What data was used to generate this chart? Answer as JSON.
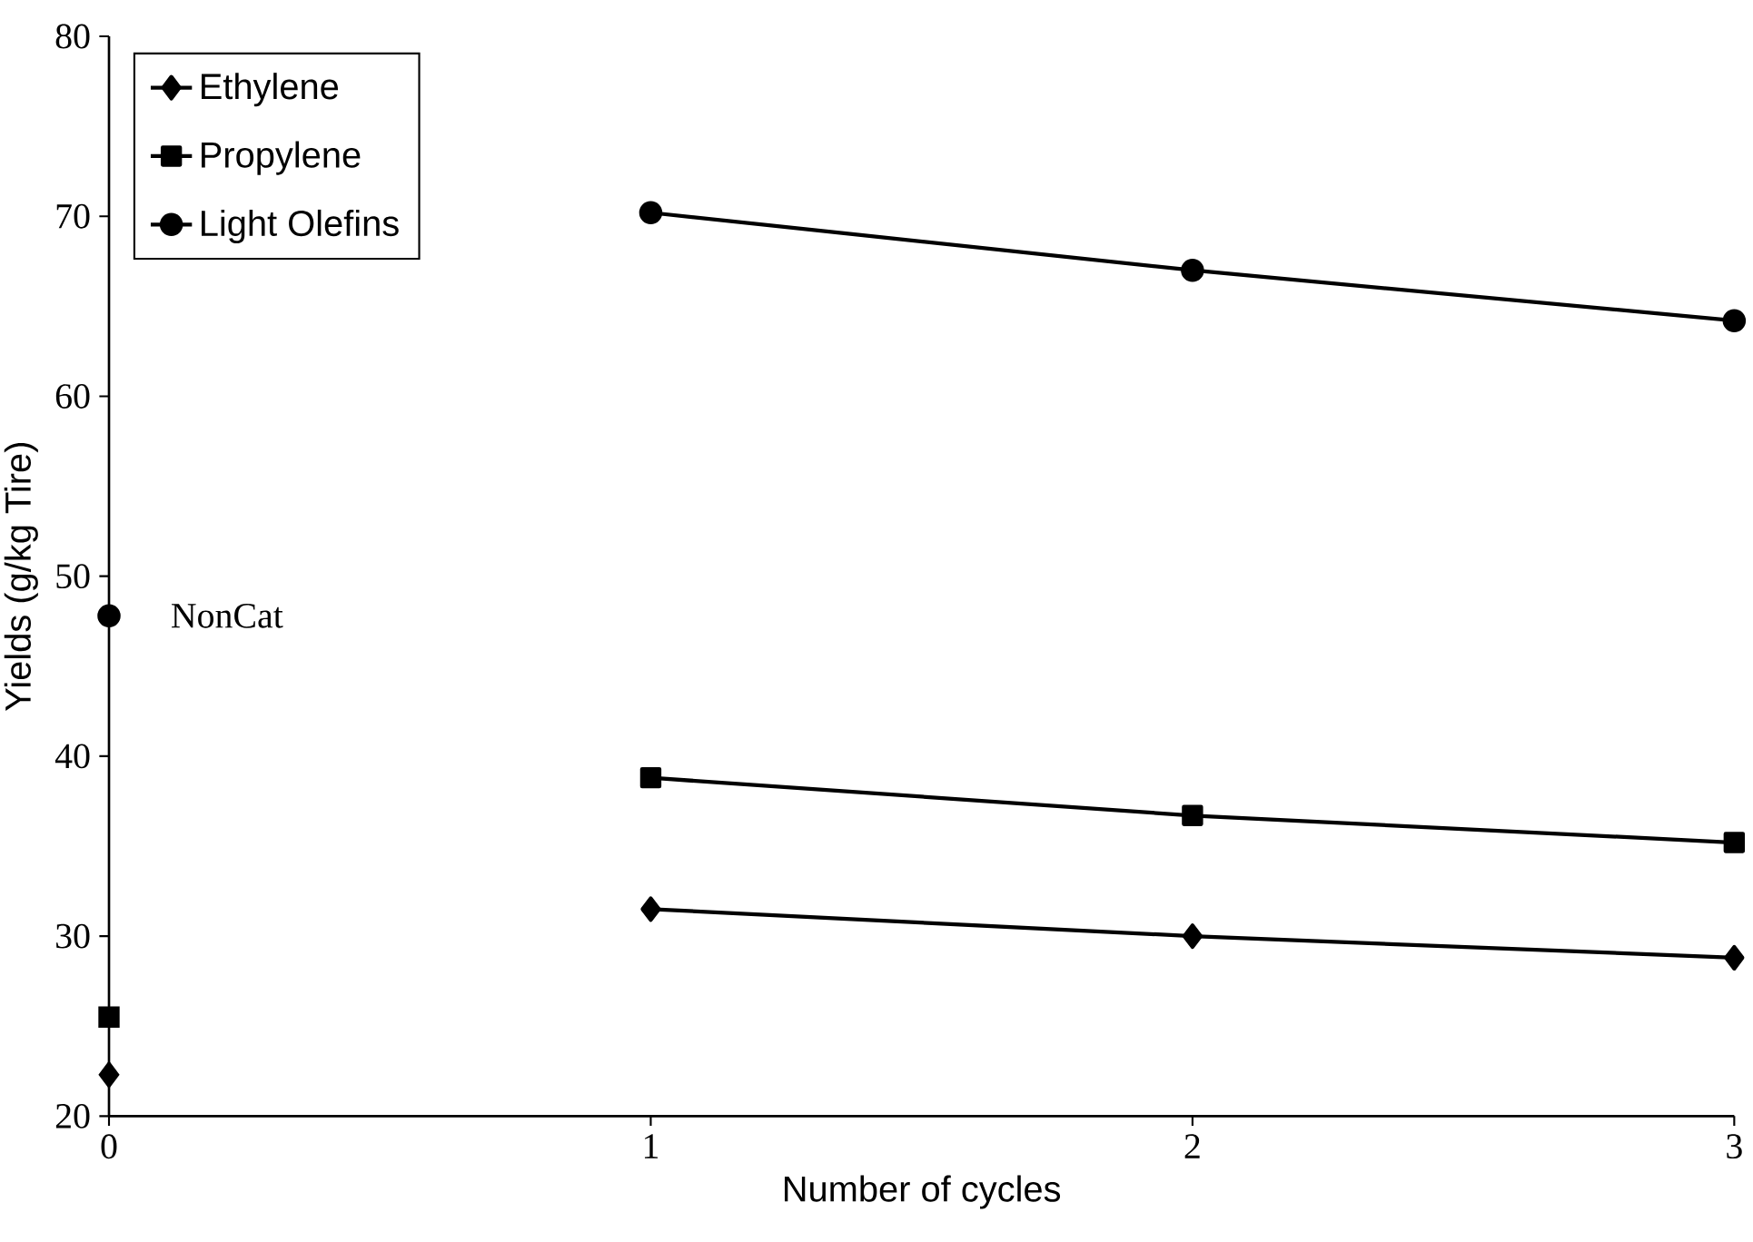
{
  "chart_data": {
    "type": "line",
    "xlabel": "Number of cycles",
    "ylabel": "Yields (g/kg Tire)",
    "xlim": [
      0,
      3
    ],
    "ylim": [
      20,
      80
    ],
    "xticks": [
      0,
      1,
      2,
      3
    ],
    "yticks": [
      20,
      30,
      40,
      50,
      60,
      70,
      80
    ],
    "grid": false,
    "legend": "top left",
    "series": [
      {
        "name": "Ethylene",
        "color": "#000000",
        "marker": "diamond",
        "x": [
          1,
          2,
          3
        ],
        "values": [
          31.5,
          30,
          28.8
        ]
      },
      {
        "name": "Propylene",
        "color": "#000000",
        "marker": "square",
        "x": [
          1,
          2,
          3
        ],
        "values": [
          38.8,
          36.7,
          35.2
        ]
      },
      {
        "name": "Light Olefins",
        "color": "#000000",
        "marker": "circle",
        "x": [
          1,
          2,
          3
        ],
        "values": [
          70.2,
          67,
          64.2
        ]
      },
      {
        "color": "#000000",
        "marker": "diamond",
        "type": "scatter",
        "x": [
          0
        ],
        "values": [
          22.3
        ]
      },
      {
        "color": "#000000",
        "marker": "square",
        "type": "scatter",
        "x": [
          0
        ],
        "values": [
          25.5
        ]
      },
      {
        "color": "#000000",
        "marker": "circle",
        "type": "scatter",
        "x": [
          0
        ],
        "values": [
          47.8
        ]
      }
    ],
    "annotations": [
      {
        "text": "NonCat",
        "x": 0,
        "y": 47.8
      }
    ]
  }
}
